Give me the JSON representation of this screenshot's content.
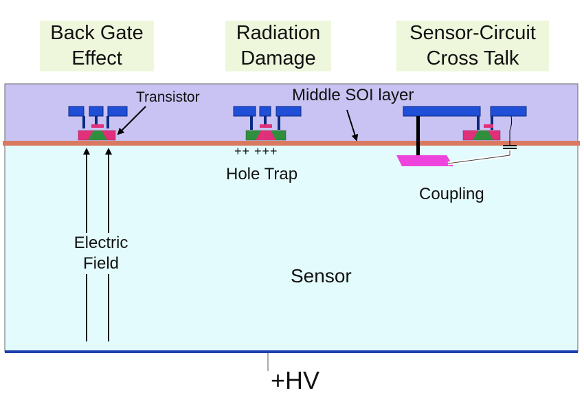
{
  "headers": {
    "back_gate": [
      "Back Gate",
      "Effect"
    ],
    "radiation": [
      "Radiation",
      "Damage"
    ],
    "crosstalk": [
      "Sensor-Circuit",
      "Cross Talk"
    ]
  },
  "labels": {
    "transistor": "Transistor",
    "middle_soi": "Middle SOI layer",
    "hole_trap_charges": "++ +++",
    "hole_trap": "Hole Trap",
    "coupling": "Coupling",
    "electric_field": [
      "Electric",
      "Field"
    ],
    "sensor": "Sensor",
    "hv": "+HV"
  },
  "colors": {
    "soi_layer": "#c9c3f3",
    "sensor": "#e3fbfd",
    "middle_layer": "#d97a60",
    "metal": "#1f4fd6",
    "gate": "#e0307a",
    "channel": "#2f8f3c",
    "coupling": "#ee44dd",
    "header_bg": "#eef7dc",
    "backplane": "#1b3fb0"
  }
}
